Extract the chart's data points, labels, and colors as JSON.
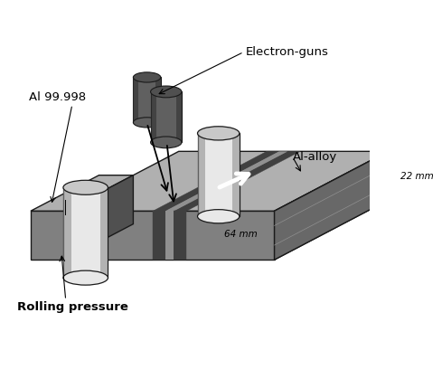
{
  "labels": {
    "electron_guns": "Electron-guns",
    "al_9998": "Al 99.998",
    "al_alloy": "Al-alloy",
    "rolling_pressure": "Rolling pressure",
    "dim_22": "22 mm",
    "dim_64": "64 mm"
  },
  "colors": {
    "dark_gray": "#555555",
    "mid_gray": "#888888",
    "light_gray": "#c8c8c8",
    "very_light_gray": "#e8e8e8",
    "bar_front": "#808080",
    "bar_top": "#b0b0b0",
    "bar_side": "#505050",
    "bar_end_face": "#686868",
    "seam_dark": "#404040",
    "seam_light": "#909090",
    "crossbar_top": "#a0a0a0",
    "crossbar_front": "#707070",
    "crossbar_side": "#404040",
    "white": "#ffffff",
    "black": "#000000",
    "outline": "#1a1a1a"
  }
}
